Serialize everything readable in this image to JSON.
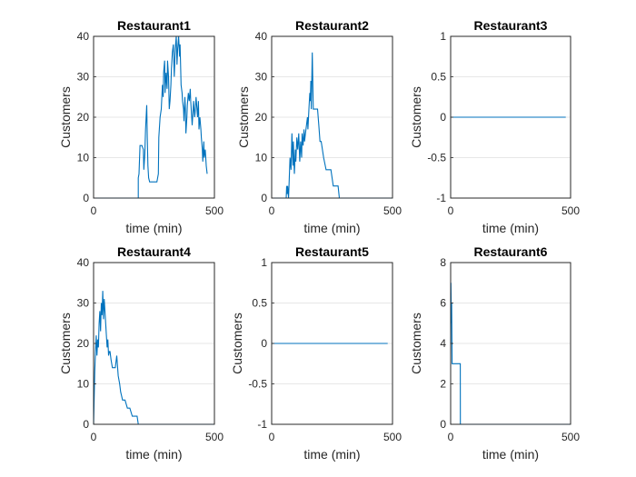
{
  "colors": {
    "series": "#0072bd",
    "axis": "#262626",
    "grid": "#dfdfdf"
  },
  "chart_data": [
    {
      "type": "line",
      "title": "Restaurant1",
      "xlabel": "time (min)",
      "ylabel": "Customers",
      "xlim": [
        0,
        500
      ],
      "ylim": [
        0,
        40
      ],
      "xticks": [
        0,
        500
      ],
      "xtick_labels": [
        "0",
        "500"
      ],
      "yticks": [
        0,
        10,
        20,
        30,
        40
      ],
      "ytick_labels": [
        "0",
        "10",
        "20",
        "30",
        "40"
      ],
      "grid": "y",
      "series": [
        {
          "x": [
            0,
            185,
            185,
            188,
            192,
            200,
            206,
            208,
            212,
            215,
            220,
            222,
            225,
            228,
            232,
            240,
            258,
            262,
            268,
            270,
            275,
            280,
            285,
            288,
            290,
            294,
            296,
            300,
            304,
            306,
            310,
            313,
            316,
            320,
            322,
            326,
            330,
            334,
            338,
            342,
            345,
            348,
            352,
            356,
            358,
            362,
            366,
            368,
            372,
            374,
            378,
            380,
            382,
            386,
            388,
            392,
            396,
            400,
            402,
            406,
            408,
            412,
            414,
            418,
            420,
            424,
            428,
            430,
            434,
            436,
            440,
            444,
            446,
            450,
            452,
            456,
            458,
            462,
            466,
            470
          ],
          "y": [
            0,
            0,
            5,
            6,
            13,
            13,
            12,
            7,
            11,
            17,
            23,
            15,
            8,
            5,
            4,
            4,
            4,
            4,
            6,
            15,
            20,
            22,
            28,
            25,
            31,
            34,
            26,
            31,
            27,
            34,
            30,
            22,
            24,
            28,
            32,
            36,
            38,
            30,
            37,
            40,
            33,
            37,
            40,
            35,
            38,
            28,
            26,
            24,
            22,
            19,
            25,
            22,
            16,
            20,
            23,
            26,
            24,
            27,
            24,
            20,
            18,
            22,
            24,
            20,
            21,
            25,
            22,
            20,
            24,
            17,
            20,
            17,
            15,
            12,
            9,
            14,
            10,
            12,
            8,
            6
          ]
        }
      ]
    },
    {
      "type": "line",
      "title": "Restaurant2",
      "xlabel": "time (min)",
      "ylabel": "Customers",
      "xlim": [
        0,
        500
      ],
      "ylim": [
        0,
        40
      ],
      "xticks": [
        0,
        500
      ],
      "xtick_labels": [
        "0",
        "500"
      ],
      "yticks": [
        0,
        10,
        20,
        30,
        40
      ],
      "ytick_labels": [
        "0",
        "10",
        "20",
        "30",
        "40"
      ],
      "grid": "y",
      "series": [
        {
          "x": [
            0,
            60,
            62,
            64,
            66,
            70,
            73,
            76,
            80,
            84,
            88,
            90,
            94,
            98,
            100,
            104,
            108,
            112,
            116,
            120,
            124,
            126,
            130,
            134,
            136,
            140,
            144,
            148,
            150,
            154,
            158,
            160,
            162,
            164,
            168,
            172,
            176,
            180,
            184,
            188,
            190,
            195,
            200,
            205,
            215,
            225,
            235,
            245,
            255,
            265,
            275,
            280,
            290,
            300,
            400,
            500
          ],
          "y": [
            0,
            0,
            3,
            1,
            3,
            0,
            5,
            10,
            7,
            16,
            8,
            14,
            6,
            12,
            9,
            15,
            12,
            16,
            9,
            14,
            10,
            16,
            13,
            17,
            14,
            16,
            18,
            20,
            17,
            22,
            26,
            24,
            29,
            22,
            36,
            22,
            22,
            22,
            22,
            22,
            22,
            18,
            14,
            14,
            10,
            7,
            7,
            7,
            3,
            3,
            3,
            0,
            0,
            0,
            0,
            0
          ]
        }
      ]
    },
    {
      "type": "line",
      "title": "Restaurant3",
      "xlabel": "time (min)",
      "ylabel": "Customers",
      "xlim": [
        0,
        500
      ],
      "ylim": [
        -1,
        1
      ],
      "xticks": [
        0,
        500
      ],
      "xtick_labels": [
        "0",
        "500"
      ],
      "yticks": [
        -1,
        -0.5,
        0,
        0.5,
        1
      ],
      "ytick_labels": [
        "-1",
        "-0.5",
        "0",
        "0.5",
        "1"
      ],
      "grid": "y",
      "series": [
        {
          "x": [
            0,
            480
          ],
          "y": [
            0,
            0
          ]
        }
      ]
    },
    {
      "type": "line",
      "title": "Restaurant4",
      "xlabel": "time (min)",
      "ylabel": "Customers",
      "xlim": [
        0,
        500
      ],
      "ylim": [
        0,
        40
      ],
      "xticks": [
        0,
        500
      ],
      "xtick_labels": [
        "0",
        "500"
      ],
      "yticks": [
        0,
        10,
        20,
        30,
        40
      ],
      "ytick_labels": [
        "0",
        "10",
        "20",
        "30",
        "40"
      ],
      "grid": "y",
      "series": [
        {
          "x": [
            0,
            2,
            5,
            8,
            11,
            14,
            17,
            20,
            23,
            26,
            29,
            32,
            35,
            38,
            41,
            44,
            47,
            50,
            53,
            56,
            59,
            62,
            65,
            68,
            72,
            78,
            84,
            90,
            96,
            102,
            108,
            112,
            120,
            130,
            140,
            150,
            160,
            170,
            180,
            185,
            190,
            200,
            250,
            300,
            350,
            400,
            450,
            500
          ],
          "y": [
            0,
            5,
            13,
            18,
            22,
            17,
            21,
            19,
            25,
            28,
            23,
            30,
            27,
            33,
            26,
            31,
            28,
            25,
            22,
            19,
            21,
            17,
            18,
            18,
            16,
            14,
            14,
            14,
            17,
            12,
            10,
            8,
            6,
            6,
            4,
            4,
            2,
            2,
            2,
            0,
            0,
            0,
            0,
            0,
            0,
            0,
            0,
            0
          ]
        }
      ]
    },
    {
      "type": "line",
      "title": "Restaurant5",
      "xlabel": "time (min)",
      "ylabel": "Customers",
      "xlim": [
        0,
        500
      ],
      "ylim": [
        -1,
        1
      ],
      "xticks": [
        0,
        500
      ],
      "xtick_labels": [
        "0",
        "500"
      ],
      "yticks": [
        -1,
        -0.5,
        0,
        0.5,
        1
      ],
      "ytick_labels": [
        "-1",
        "-0.5",
        "0",
        "0.5",
        "1"
      ],
      "grid": "y",
      "series": [
        {
          "x": [
            0,
            480
          ],
          "y": [
            0,
            0
          ]
        }
      ]
    },
    {
      "type": "line",
      "title": "Restaurant6",
      "xlabel": "time (min)",
      "ylabel": "Customers",
      "xlim": [
        0,
        500
      ],
      "ylim": [
        0,
        8
      ],
      "xticks": [
        0,
        500
      ],
      "xtick_labels": [
        "0",
        "500"
      ],
      "yticks": [
        0,
        2,
        4,
        6,
        8
      ],
      "ytick_labels": [
        "0",
        "2",
        "4",
        "6",
        "8"
      ],
      "grid": "y",
      "series": [
        {
          "x": [
            0,
            1,
            3,
            4,
            6,
            8,
            8.5,
            40,
            40.5,
            500
          ],
          "y": [
            4,
            7,
            5,
            6,
            3,
            3,
            3,
            3,
            0,
            0
          ]
        }
      ]
    }
  ]
}
